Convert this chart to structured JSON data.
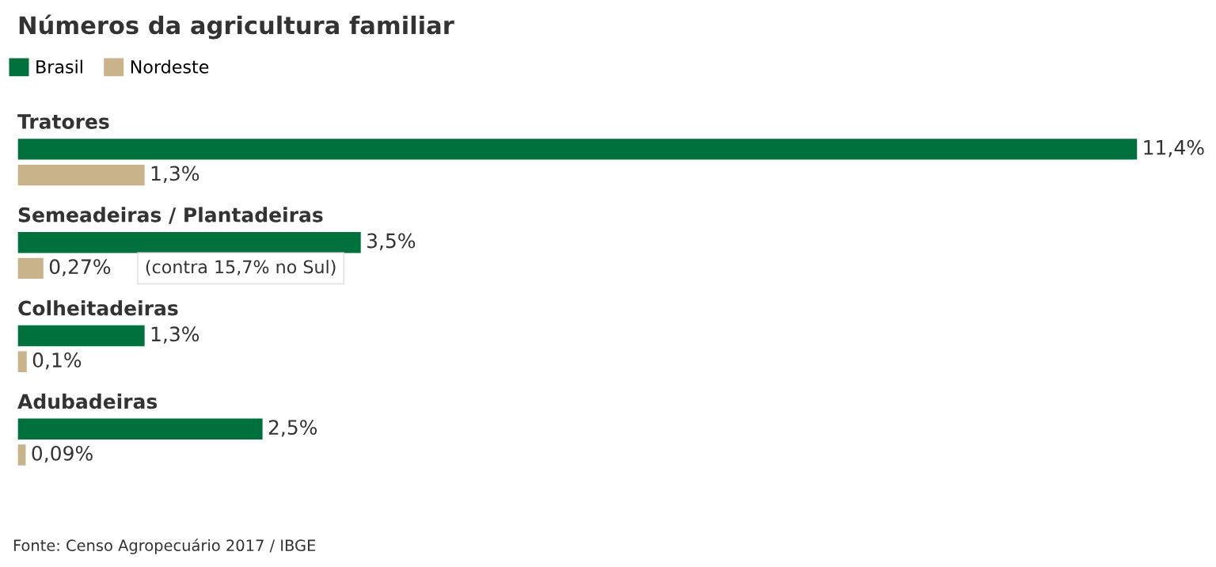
{
  "chart_data": {
    "type": "bar",
    "orientation": "horizontal",
    "title": "Números da agricultura familiar",
    "categories": [
      "Tratores",
      "Semeadeiras / Plantadeiras",
      "Colheitadeiras",
      "Adubadeiras"
    ],
    "series": [
      {
        "name": "Brasil",
        "color": "#00703c",
        "values": [
          11.4,
          3.5,
          1.3,
          2.5
        ],
        "value_labels": [
          "11,4%",
          "3,5%",
          "1,3%",
          "2,5%"
        ]
      },
      {
        "name": "Nordeste",
        "color": "#c8b38a",
        "values": [
          1.3,
          0.27,
          0.1,
          0.09
        ],
        "value_labels": [
          "1,3%",
          "0,27%",
          "0,1%",
          "0,09%"
        ]
      }
    ],
    "legend": "top left",
    "annotations": [
      "(contra 15,7% no Sul)",
      "Fonte: Censo Agropecuário 2017 / IBGE"
    ]
  }
}
